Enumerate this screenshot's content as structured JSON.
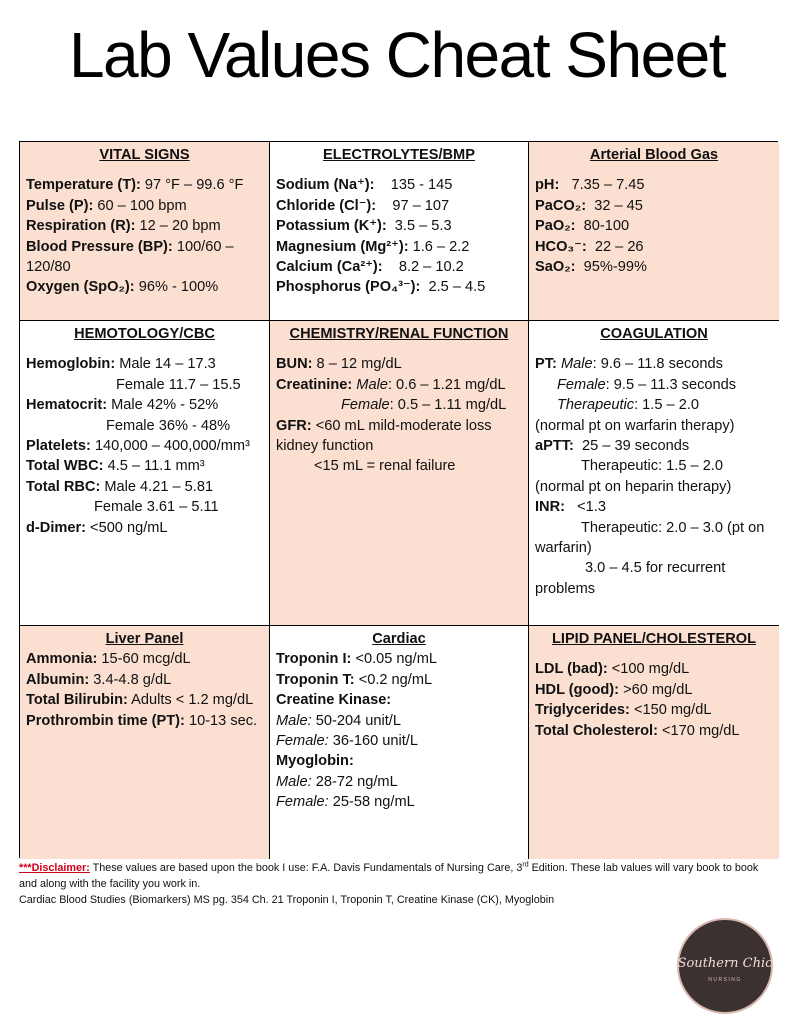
{
  "title": "Lab Values Cheat Sheet",
  "cells": [
    {
      "header": "VITAL SIGNS",
      "color": "#fbe0d2",
      "lines": [
        [
          {
            "bold": "Temperature (T):"
          },
          {
            "text": " 97 °F – 99.6 °F"
          }
        ],
        [
          {
            "bold": "Pulse (P):"
          },
          {
            "text": " 60 – 100 bpm"
          }
        ],
        [
          {
            "bold": "Respiration (R):"
          },
          {
            "text": " 12 – 20 bpm"
          }
        ],
        [
          {
            "bold": "Blood Pressure (BP):"
          },
          {
            "text": " 100/60 – 120/80"
          }
        ],
        [
          {
            "bold": "Oxygen (SpO₂):"
          },
          {
            "text": " 96% - 100%"
          }
        ]
      ]
    },
    {
      "header": "ELECTROLYTES/BMP",
      "color": "#ffffff",
      "lines": [
        [
          {
            "bold": "Sodium (Na⁺):"
          },
          {
            "text": "    135 - 145"
          }
        ],
        [
          {
            "bold": "Chloride (Cl⁻):"
          },
          {
            "text": "    97 – 107"
          }
        ],
        [
          {
            "bold": "Potassium (K⁺):"
          },
          {
            "text": "  3.5 – 5.3"
          }
        ],
        [
          {
            "bold": "Magnesium (Mg²⁺):"
          },
          {
            "text": " 1.6 – 2.2"
          }
        ],
        [
          {
            "bold": "Calcium (Ca²⁺):"
          },
          {
            "text": "    8.2 – 10.2"
          }
        ],
        [
          {
            "bold": "Phosphorus (PO₄³⁻):"
          },
          {
            "text": "  2.5 – 4.5"
          }
        ]
      ]
    },
    {
      "header": "Arterial Blood Gas",
      "color": "#fbe0d2",
      "lines": [
        [
          {
            "bold": "pH:"
          },
          {
            "text": "   7.35 – 7.45"
          }
        ],
        [
          {
            "bold": "PaCO₂:"
          },
          {
            "text": "  32 – 45"
          }
        ],
        [
          {
            "bold": "PaO₂:"
          },
          {
            "text": "  80-100"
          }
        ],
        [
          {
            "bold": "HCO₃⁻:"
          },
          {
            "text": "  22 – 26"
          }
        ],
        [
          {
            "bold": "SaO₂:"
          },
          {
            "text": "  95%-99%"
          }
        ]
      ]
    },
    {
      "header": "HEMOTOLOGY/CBC",
      "color": "#ffffff",
      "lines": [
        [
          {
            "bold": "Hemoglobin:"
          },
          {
            "text": " Male 14 – 17.3"
          }
        ],
        [
          {
            "text": "Female 11.7 – 15.5"
          }
        ],
        [
          {
            "bold": "Hematocrit:"
          },
          {
            "text": " Male 42% - 52%"
          }
        ],
        [
          {
            "text": "Female 36% - 48%"
          }
        ],
        [
          {
            "bold": "Platelets:"
          },
          {
            "text": " 140,000 – 400,000/mm³"
          }
        ],
        [
          {
            "bold": "Total WBC:"
          },
          {
            "text": " 4.5 – 11.1 mm³"
          }
        ],
        [
          {
            "bold": "Total RBC:"
          },
          {
            "text": " Male 4.21 – 5.81"
          }
        ],
        [
          {
            "text": "Female 3.61 – 5.11"
          }
        ],
        [
          {
            "bold": "d-Dimer:"
          },
          {
            "text": " <500 ng/mL"
          }
        ]
      ]
    },
    {
      "header": "CHEMISTRY/RENAL FUNCTION",
      "color": "#fbe0d2",
      "lines": [
        [
          {
            "bold": "BUN:"
          },
          {
            "text": " 8 – 12 mg/dL"
          }
        ],
        [
          {
            "bold": "Creatinine:"
          },
          {
            "text": " "
          },
          {
            "italic": "Male"
          },
          {
            "text": ": 0.6 – 1.21 mg/dL"
          }
        ],
        [
          {
            "italic": "Female"
          },
          {
            "text": ": 0.5 – 1.11 mg/dL"
          }
        ],
        [
          {
            "bold": "GFR:"
          },
          {
            "text": " <60 mL mild-moderate loss kidney function"
          }
        ],
        [
          {
            "text": "<15 mL = renal failure"
          }
        ]
      ]
    },
    {
      "header": "COAGULATION",
      "color": "#ffffff",
      "lines": [
        [
          {
            "bold": "PT:"
          },
          {
            "text": " "
          },
          {
            "italic": "Male"
          },
          {
            "text": ": 9.6 – 11.8 seconds"
          }
        ],
        [
          {
            "italic": "Female"
          },
          {
            "text": ": 9.5 – 11.3 seconds"
          }
        ],
        [
          {
            "italic": "Therapeutic"
          },
          {
            "text": ": 1.5 – 2.0"
          }
        ],
        [
          {
            "text": "(normal pt on warfarin therapy)"
          }
        ],
        [
          {
            "bold": "aPTT:"
          },
          {
            "text": "  25 – 39 seconds"
          }
        ],
        [
          {
            "text": "Therapeutic: 1.5 – 2.0"
          }
        ],
        [
          {
            "text": "(normal pt on heparin therapy)"
          }
        ],
        [
          {
            "bold": "INR:"
          },
          {
            "text": "   <1.3"
          }
        ],
        [
          {
            "text": "Therapeutic: 2.0 – 3.0 (pt on warfarin)"
          }
        ],
        [
          {
            "text": "3.0 – 4.5 for recurrent problems"
          }
        ]
      ]
    },
    {
      "header": "Liver Panel",
      "color": "#fbe0d2",
      "lines": [
        [
          {
            "bold": "Ammonia:"
          },
          {
            "text": " 15-60 mcg/dL"
          }
        ],
        [
          {
            "bold": "Albumin:"
          },
          {
            "text": " 3.4-4.8 g/dL"
          }
        ],
        [
          {
            "bold": "Total Bilirubin:"
          },
          {
            "text": " Adults < 1.2 mg/dL"
          }
        ],
        [
          {
            "bold": "Prothrombin time (PT):"
          },
          {
            "text": " 10-13 sec."
          }
        ]
      ]
    },
    {
      "header": "Cardiac",
      "color": "#ffffff",
      "lines": [
        [
          {
            "bold": "Troponin I:"
          },
          {
            "text": " <0.05 ng/mL"
          }
        ],
        [
          {
            "bold": "Troponin T:"
          },
          {
            "text": " <0.2 ng/mL"
          }
        ],
        [
          {
            "bold": "Creatine Kinase:"
          }
        ],
        [
          {
            "italic": "Male:"
          },
          {
            "text": " 50-204 unit/L"
          }
        ],
        [
          {
            "italic": "Female:"
          },
          {
            "text": " 36-160 unit/L"
          }
        ],
        [
          {
            "bold": "Myoglobin:"
          }
        ],
        [
          {
            "italic": "Male:"
          },
          {
            "text": " 28-72 ng/mL"
          }
        ],
        [
          {
            "italic": "Female:"
          },
          {
            "text": " 25-58 ng/mL"
          }
        ]
      ]
    },
    {
      "header": "LIPID PANEL/CHOLESTEROL",
      "color": "#fbe0d2",
      "lines": [
        [
          {
            "bold": "LDL (bad):"
          },
          {
            "text": " <100 mg/dL"
          }
        ],
        [
          {
            "bold": "HDL (good):"
          },
          {
            "text": " >60 mg/dL"
          }
        ],
        [
          {
            "bold": "Triglycerides:"
          },
          {
            "text": " <150 mg/dL"
          }
        ],
        [
          {
            "bold": "Total Cholesterol:"
          },
          {
            "text": " <170 mg/dL"
          }
        ]
      ]
    }
  ],
  "footer": {
    "disclaimer": [
      {
        "alert": "***Disclaimer:"
      },
      {
        "text": " These values are based upon the book I use: F.A. Davis Fundamentals of Nursing Care, 3"
      },
      {
        "sup": "rd"
      },
      {
        "text": " Edition. These lab values will vary book to book and along with the facility you work in."
      }
    ],
    "note": "Cardiac Blood Studies (Biomarkers) MS pg. 354 Ch. 21 Troponin I, Troponin T, Creatine Kinase (CK), Myoglobin"
  },
  "logo": {
    "script": "Southern Chic",
    "caption": "NURSING"
  }
}
